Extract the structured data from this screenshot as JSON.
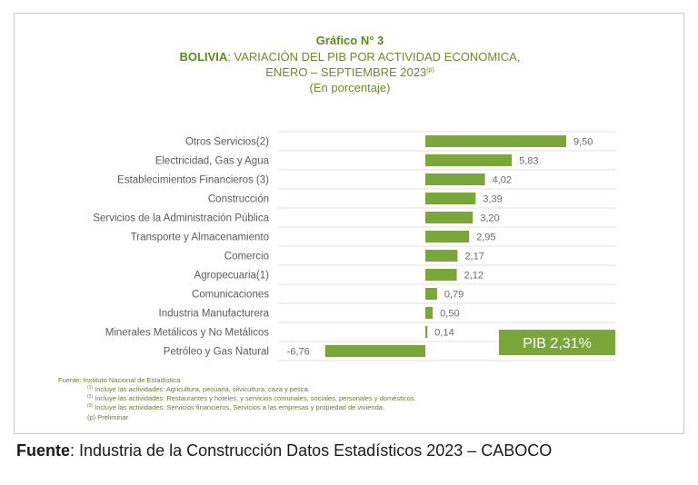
{
  "title": {
    "line1": "Gráfico N° 3",
    "country": "BOLIVIA",
    "line2_rest": ": VARIACIÓN DEL PIB POR ACTIVIDAD ECONOMICA,",
    "line3": "ENERO – SEPTIEMBRE 2023",
    "line3_sup": "(p)",
    "line4": "(En porcentaje)"
  },
  "chart_data": {
    "type": "bar",
    "orientation": "horizontal",
    "categories": [
      "Otros Servicios(2)",
      "Electricidad, Gas y Agua",
      "Establecimientos Financieros (3)",
      "Construcción",
      "Servicios de la Administración Pública",
      "Transporte y Almacenamiento",
      "Comercio",
      "Agropecuaria(1)",
      "Comunicaciones",
      "Industria Manufacturera",
      "Minerales Metálicos y No Metálicos",
      "Petróleo y Gas Natural"
    ],
    "values": [
      9.5,
      5.83,
      4.02,
      3.39,
      3.2,
      2.95,
      2.17,
      2.12,
      0.79,
      0.5,
      0.14,
      -6.76
    ],
    "value_labels": [
      "9,50",
      "5,83",
      "4,02",
      "3,39",
      "3,20",
      "2,95",
      "2,17",
      "2,12",
      "0,79",
      "0,50",
      "0,14",
      "-6,76"
    ],
    "bar_color": "#7aa63a",
    "grid": true
  },
  "pib_box": {
    "label": "PIB 2,31%",
    "color": "#7aa63a"
  },
  "notes": {
    "source": "Fuente: Instituto Nacional de Estadística",
    "n1_mark": "(1)",
    "n1": "Incluye las actividades: Agricultura, pecuaria, silvicultura, caza y pesca.",
    "n2_mark": "(2)",
    "n2": "Incluye las actividades: Restaurantes y hoteles, y servicios comunales, sociales, personales y domésticos.",
    "n3_mark": "(3)",
    "n3": "Incluye las actividades: Servicios financieros, Servicios a las empresas y propiedad de vivienda.",
    "prelim": "(p) Preliminar"
  },
  "caption": {
    "bold": "Fuente",
    "rest": ": Industria de la Construcción Datos Estadísticos 2023 – CABOCO"
  }
}
